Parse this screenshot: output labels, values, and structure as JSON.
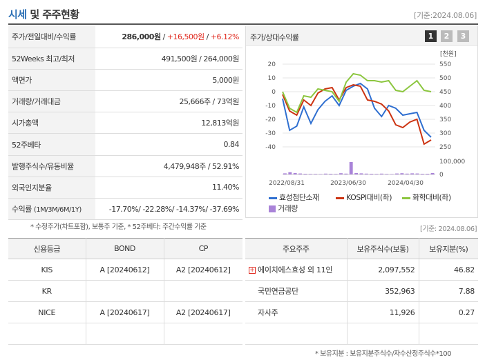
{
  "header": {
    "title": "시세",
    "title_rest": " 및 주주현황",
    "date": "[기준:2024.08.06]"
  },
  "price_table": [
    {
      "label": "주가/전일대비/수익률",
      "v1": "286,000원",
      "sep1": " / ",
      "v2": "+16,500원",
      "sep2": " / ",
      "v3": "+6.12%"
    },
    {
      "label": "52Weeks 최고/최저",
      "value": "491,500원 / 264,000원"
    },
    {
      "label": "액면가",
      "value": "5,000원"
    },
    {
      "label": "거래량/거래대금",
      "value": "25,666주 / 73억원"
    },
    {
      "label": "시가총액",
      "value": "12,813억원"
    },
    {
      "label": "52주베타",
      "value": "0.84"
    },
    {
      "label": "발행주식수/유동비율",
      "value": "4,479,948주 / 52.91%"
    },
    {
      "label": "외국인지분율",
      "value": "11.40%"
    },
    {
      "label": "수익률",
      "label_small": "(1M/3M/6M/1Y)",
      "value": "-17.70%/ -22.28%/ -14.37%/ -37.69%"
    }
  ],
  "note_left": "* 수정주가(차트포함), 보통주 기준, * 52주베타: 주간수익률 기준",
  "chart_panel": {
    "title": "주가/상대수익률",
    "pages": [
      "1",
      "2",
      "3"
    ]
  },
  "chart_data": {
    "type": "line",
    "x_tick_labels": [
      "2022/08/31",
      "2023/06/30",
      "2024/04/30"
    ],
    "left_axis": {
      "ticks": [
        "20",
        "10",
        "0",
        "-10",
        "-20",
        "-30",
        "-40"
      ],
      "ylim": [
        -40,
        20
      ]
    },
    "right_axis": {
      "unit": "[천원]",
      "ticks": [
        "550",
        "500",
        "450",
        "400",
        "350",
        "300",
        "250"
      ],
      "ylim": [
        250,
        550
      ]
    },
    "volume_axis": {
      "ticks": [
        "100,000",
        "0"
      ]
    },
    "series": [
      {
        "name": "효성첨단소재",
        "color": "#2f6fd0",
        "values": [
          -5,
          -28,
          -25,
          -11,
          -23,
          -13,
          -7,
          -3,
          -10,
          1,
          4,
          6,
          2,
          -12,
          -18,
          -10,
          -12,
          -17,
          -16,
          -15,
          -28,
          -33
        ]
      },
      {
        "name": "KOSPI대비(좌)",
        "color": "#cc3311",
        "values": [
          -2,
          -14,
          -17,
          -6,
          -10,
          -1,
          2,
          3,
          -6,
          3,
          5,
          4,
          -6,
          -7,
          -9,
          -14,
          -24,
          -26,
          -22,
          -20,
          -38,
          -35
        ]
      },
      {
        "name": "화학대비(좌)",
        "color": "#8cc63f",
        "values": [
          0,
          -12,
          -15,
          -3,
          -4,
          2,
          1,
          0,
          -7,
          7,
          13,
          12,
          8,
          8,
          7,
          8,
          1,
          0,
          4,
          8,
          1,
          0
        ]
      }
    ],
    "volume": {
      "name": "거래량",
      "color": "#a983d8",
      "values": [
        8,
        16,
        10,
        7,
        5,
        4,
        4,
        3,
        6,
        5,
        4,
        9,
        6,
        90,
        10,
        8,
        6,
        5,
        4,
        6,
        4,
        3,
        7,
        9,
        6,
        8,
        7,
        5,
        5,
        10
      ]
    }
  },
  "date2": "[기준: 2024.08.06]",
  "credit_table": {
    "headers": [
      "신용등급",
      "BOND",
      "CP"
    ],
    "rows": [
      [
        "KIS",
        "A [20240612]",
        "A2 [20240612]"
      ],
      [
        "KR",
        "",
        ""
      ],
      [
        "NICE",
        "A [20240617]",
        "A2 [20240617]"
      ],
      [
        "",
        "",
        ""
      ]
    ]
  },
  "holders_table": {
    "headers": [
      "주요주주",
      "보유주식수(보통)",
      "보유지분(%)"
    ],
    "rows": [
      [
        "에이치에스효성 외 11인",
        "2,097,552",
        "46.82"
      ],
      [
        "국민연금공단",
        "352,963",
        "7.88"
      ],
      [
        "자사주",
        "11,926",
        "0.27"
      ],
      [
        "",
        "",
        ""
      ]
    ]
  },
  "note_right": "* 보유지분 : 보유지분주식수/자수산정주식수*100"
}
